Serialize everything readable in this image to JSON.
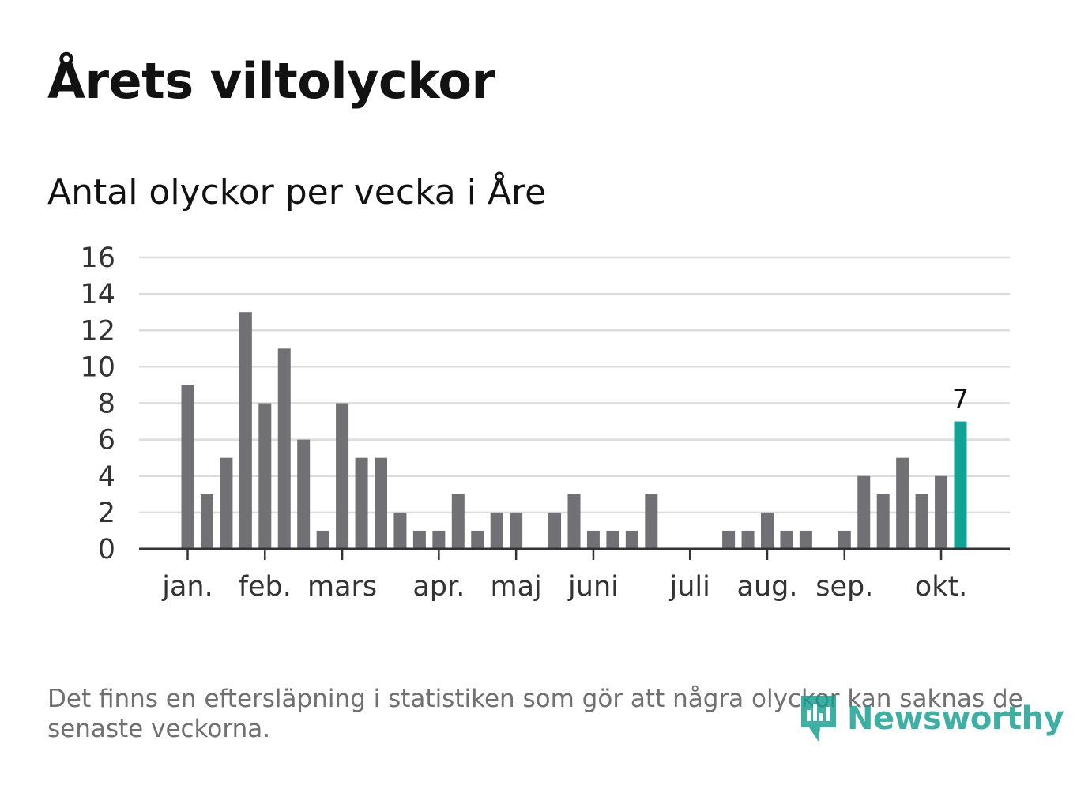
{
  "title": "Årets viltolyckor",
  "subtitle": "Antal olyckor per vecka i Åre",
  "footnote": "Det finns en eftersläpning i statistiken som gör att några olyckor kan saknas de senaste veckorna.",
  "logo": {
    "text": "Newsworthy",
    "icon": "newsworthy-logo-icon"
  },
  "colors": {
    "bar": "#717075",
    "highlight": "#12a395",
    "grid": "#dcdcdc",
    "axis": "#333333",
    "tick_text": "#333333"
  },
  "chart_data": {
    "type": "bar",
    "title": "Antal olyckor per vecka i Åre",
    "xlabel": "",
    "ylabel": "",
    "ylim": [
      0,
      16
    ],
    "yticks": [
      "0",
      "2",
      "4",
      "6",
      "8",
      "10",
      "12",
      "14",
      "16"
    ],
    "grid": true,
    "weeks": [
      2,
      3,
      4,
      5,
      6,
      7,
      8,
      9,
      10,
      11,
      12,
      13,
      14,
      15,
      16,
      17,
      18,
      19,
      20,
      21,
      22,
      23,
      24,
      25,
      26,
      27,
      28,
      29,
      30,
      31,
      32,
      33,
      34,
      35,
      36,
      37,
      38,
      39,
      40,
      41,
      42
    ],
    "values": [
      9,
      3,
      5,
      13,
      8,
      11,
      6,
      1,
      8,
      5,
      5,
      2,
      1,
      1,
      3,
      1,
      2,
      2,
      0,
      2,
      3,
      1,
      1,
      1,
      3,
      0,
      0,
      0,
      1,
      1,
      2,
      1,
      1,
      0,
      1,
      4,
      3,
      5,
      3,
      4,
      7
    ],
    "highlight_index": 40,
    "highlight_label": "7",
    "month_labels": [
      {
        "label": "jan.",
        "week": 2.0
      },
      {
        "label": "feb.",
        "week": 6.0
      },
      {
        "label": "mars",
        "week": 10.0
      },
      {
        "label": "apr.",
        "week": 15.0
      },
      {
        "label": "maj",
        "week": 19.0
      },
      {
        "label": "juni",
        "week": 23.0
      },
      {
        "label": "juli",
        "week": 28.0
      },
      {
        "label": "aug.",
        "week": 32.0
      },
      {
        "label": "sep.",
        "week": 36.0
      },
      {
        "label": "okt.",
        "week": 41.0
      }
    ]
  }
}
